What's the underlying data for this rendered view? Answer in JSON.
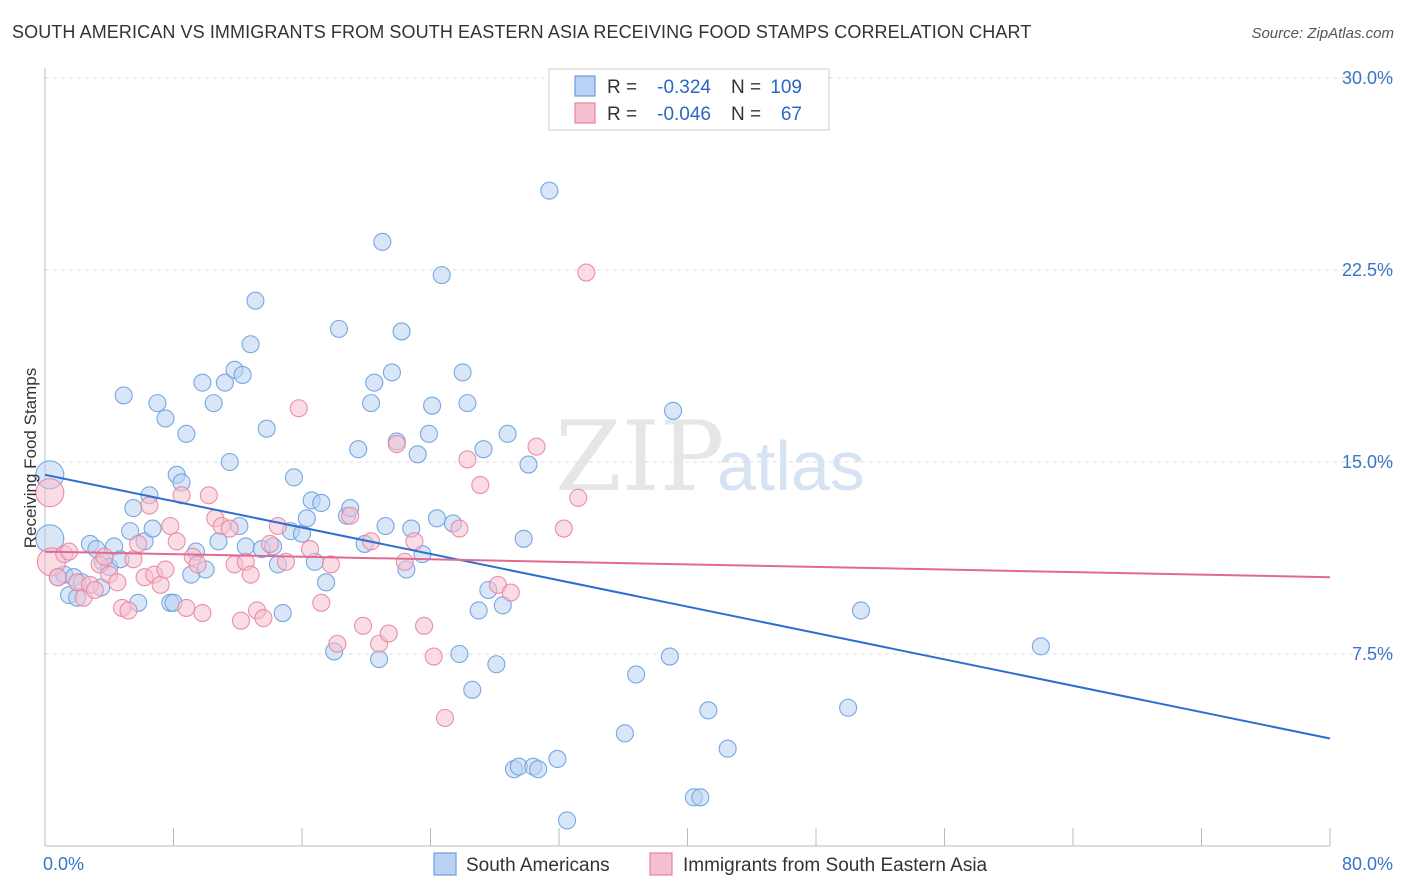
{
  "title": "SOUTH AMERICAN VS IMMIGRANTS FROM SOUTH EASTERN ASIA RECEIVING FOOD STAMPS CORRELATION CHART",
  "source": "Source: ZipAtlas.com",
  "watermark": {
    "zip": "ZIP",
    "atlas": "atlas"
  },
  "chart_data": {
    "type": "scatter",
    "title": "SOUTH AMERICAN VS IMMIGRANTS FROM SOUTH EASTERN ASIA RECEIVING FOOD STAMPS CORRELATION CHART",
    "xlabel": "",
    "ylabel": "Receiving Food Stamps",
    "xlim": [
      0,
      80
    ],
    "ylim": [
      0,
      30
    ],
    "x_tick_labels": [
      "0.0%",
      "80.0%"
    ],
    "y_ticks": [
      7.5,
      15.0,
      22.5,
      30.0
    ],
    "y_tick_labels": [
      "7.5%",
      "15.0%",
      "22.5%",
      "30.0%"
    ],
    "grid": true,
    "legend_position": "bottom-center",
    "stats": [
      {
        "r_label": "R =",
        "r": "-0.324",
        "n_label": "N =",
        "n": "109"
      },
      {
        "r_label": "R =",
        "r": "-0.046",
        "n_label": "N =",
        "n": "67"
      }
    ],
    "series": [
      {
        "name": "South Americans",
        "color": "#6a9ee0",
        "fill": "#b9d1f2",
        "line_color": "#2c6fd1",
        "trend": [
          [
            0,
            14.5
          ],
          [
            80,
            4.2
          ]
        ],
        "points": [
          [
            0.3,
            14.5
          ],
          [
            0.3,
            12.0
          ],
          [
            0.8,
            10.5
          ],
          [
            1.2,
            10.6
          ],
          [
            1.5,
            9.8
          ],
          [
            1.8,
            10.5
          ],
          [
            2.3,
            10.3
          ],
          [
            2.8,
            11.8
          ],
          [
            3.2,
            11.6
          ],
          [
            3.6,
            11.1
          ],
          [
            4.0,
            10.9
          ],
          [
            4.3,
            11.7
          ],
          [
            4.7,
            11.2
          ],
          [
            4.9,
            17.6
          ],
          [
            5.3,
            12.3
          ],
          [
            5.5,
            13.2
          ],
          [
            5.8,
            9.5
          ],
          [
            6.2,
            11.9
          ],
          [
            6.5,
            13.7
          ],
          [
            6.7,
            12.4
          ],
          [
            7.0,
            17.3
          ],
          [
            7.5,
            16.7
          ],
          [
            7.8,
            9.5
          ],
          [
            8.0,
            9.5
          ],
          [
            8.2,
            14.5
          ],
          [
            8.5,
            14.2
          ],
          [
            8.8,
            16.1
          ],
          [
            9.1,
            10.6
          ],
          [
            9.4,
            11.5
          ],
          [
            9.8,
            18.1
          ],
          [
            10.0,
            10.8
          ],
          [
            10.5,
            17.3
          ],
          [
            10.8,
            11.9
          ],
          [
            11.2,
            18.1
          ],
          [
            11.5,
            15.0
          ],
          [
            11.8,
            18.6
          ],
          [
            12.1,
            12.5
          ],
          [
            12.3,
            18.4
          ],
          [
            12.5,
            11.7
          ],
          [
            12.8,
            19.6
          ],
          [
            13.1,
            21.3
          ],
          [
            13.5,
            11.6
          ],
          [
            13.8,
            16.3
          ],
          [
            14.2,
            11.7
          ],
          [
            14.5,
            11.0
          ],
          [
            14.8,
            9.1
          ],
          [
            15.3,
            12.3
          ],
          [
            15.5,
            14.4
          ],
          [
            16.0,
            12.2
          ],
          [
            16.3,
            12.8
          ],
          [
            16.6,
            13.5
          ],
          [
            16.8,
            11.1
          ],
          [
            17.2,
            13.4
          ],
          [
            17.5,
            10.3
          ],
          [
            18.0,
            7.6
          ],
          [
            18.3,
            20.2
          ],
          [
            18.8,
            12.9
          ],
          [
            19.0,
            13.2
          ],
          [
            19.5,
            15.5
          ],
          [
            19.9,
            11.8
          ],
          [
            20.3,
            17.3
          ],
          [
            20.5,
            18.1
          ],
          [
            20.8,
            7.3
          ],
          [
            21.0,
            23.6
          ],
          [
            21.2,
            12.5
          ],
          [
            21.6,
            18.5
          ],
          [
            21.9,
            15.8
          ],
          [
            22.2,
            20.1
          ],
          [
            22.5,
            10.8
          ],
          [
            22.8,
            12.4
          ],
          [
            23.2,
            15.3
          ],
          [
            23.5,
            11.4
          ],
          [
            23.9,
            16.1
          ],
          [
            24.1,
            17.2
          ],
          [
            24.4,
            12.8
          ],
          [
            24.7,
            22.3
          ],
          [
            25.4,
            12.6
          ],
          [
            25.8,
            7.5
          ],
          [
            26.0,
            18.5
          ],
          [
            26.3,
            17.3
          ],
          [
            26.6,
            6.1
          ],
          [
            27.0,
            9.2
          ],
          [
            27.3,
            15.5
          ],
          [
            27.6,
            10.0
          ],
          [
            28.1,
            7.1
          ],
          [
            28.5,
            9.4
          ],
          [
            28.8,
            16.1
          ],
          [
            29.2,
            3.0
          ],
          [
            29.5,
            3.1
          ],
          [
            29.8,
            12.0
          ],
          [
            30.1,
            14.9
          ],
          [
            30.4,
            3.1
          ],
          [
            30.7,
            3.0
          ],
          [
            31.4,
            25.6
          ],
          [
            31.9,
            3.4
          ],
          [
            32.5,
            1.0
          ],
          [
            36.1,
            4.4
          ],
          [
            36.8,
            6.7
          ],
          [
            38.9,
            7.4
          ],
          [
            39.1,
            17.0
          ],
          [
            40.4,
            1.9
          ],
          [
            40.8,
            1.9
          ],
          [
            41.3,
            5.3
          ],
          [
            42.5,
            3.8
          ],
          [
            50.0,
            5.4
          ],
          [
            50.8,
            9.2
          ],
          [
            62.0,
            7.8
          ],
          [
            2.0,
            9.7
          ],
          [
            3.5,
            10.1
          ]
        ]
      },
      {
        "name": "Immigrants from South Eastern Asia",
        "color": "#e9849f",
        "fill": "#f6bfd0",
        "line_color": "#e06a93",
        "trend": [
          [
            0,
            11.5
          ],
          [
            80,
            10.5
          ]
        ],
        "points": [
          [
            0.3,
            13.8
          ],
          [
            0.4,
            11.1
          ],
          [
            0.8,
            10.5
          ],
          [
            1.2,
            11.4
          ],
          [
            1.5,
            11.5
          ],
          [
            2.0,
            10.3
          ],
          [
            2.4,
            9.7
          ],
          [
            2.8,
            10.2
          ],
          [
            3.1,
            10.0
          ],
          [
            3.4,
            11.0
          ],
          [
            3.7,
            11.3
          ],
          [
            4.0,
            10.6
          ],
          [
            4.5,
            10.3
          ],
          [
            4.8,
            9.3
          ],
          [
            5.2,
            9.2
          ],
          [
            5.5,
            11.2
          ],
          [
            5.8,
            11.8
          ],
          [
            6.2,
            10.5
          ],
          [
            6.5,
            13.3
          ],
          [
            6.8,
            10.6
          ],
          [
            7.2,
            10.2
          ],
          [
            7.5,
            10.8
          ],
          [
            7.8,
            12.5
          ],
          [
            8.2,
            11.9
          ],
          [
            8.5,
            13.7
          ],
          [
            8.8,
            9.3
          ],
          [
            9.2,
            11.3
          ],
          [
            9.5,
            11.0
          ],
          [
            9.8,
            9.1
          ],
          [
            10.2,
            13.7
          ],
          [
            10.6,
            12.8
          ],
          [
            11.0,
            12.5
          ],
          [
            11.5,
            12.4
          ],
          [
            11.8,
            11.0
          ],
          [
            12.2,
            8.8
          ],
          [
            12.5,
            11.1
          ],
          [
            12.8,
            10.6
          ],
          [
            13.2,
            9.2
          ],
          [
            13.6,
            8.9
          ],
          [
            14.0,
            11.8
          ],
          [
            14.5,
            12.5
          ],
          [
            15.0,
            11.1
          ],
          [
            15.8,
            17.1
          ],
          [
            16.5,
            11.6
          ],
          [
            17.2,
            9.5
          ],
          [
            17.8,
            11.0
          ],
          [
            18.2,
            7.9
          ],
          [
            19.0,
            12.9
          ],
          [
            19.8,
            8.6
          ],
          [
            20.3,
            11.9
          ],
          [
            20.8,
            7.9
          ],
          [
            21.4,
            8.3
          ],
          [
            21.9,
            15.7
          ],
          [
            22.4,
            11.1
          ],
          [
            23.0,
            11.9
          ],
          [
            23.6,
            8.6
          ],
          [
            24.2,
            7.4
          ],
          [
            24.9,
            5.0
          ],
          [
            25.8,
            12.4
          ],
          [
            26.3,
            15.1
          ],
          [
            27.1,
            14.1
          ],
          [
            28.2,
            10.2
          ],
          [
            29.0,
            9.9
          ],
          [
            30.6,
            15.6
          ],
          [
            32.3,
            12.4
          ],
          [
            33.2,
            13.6
          ],
          [
            33.7,
            22.4
          ]
        ]
      }
    ]
  }
}
